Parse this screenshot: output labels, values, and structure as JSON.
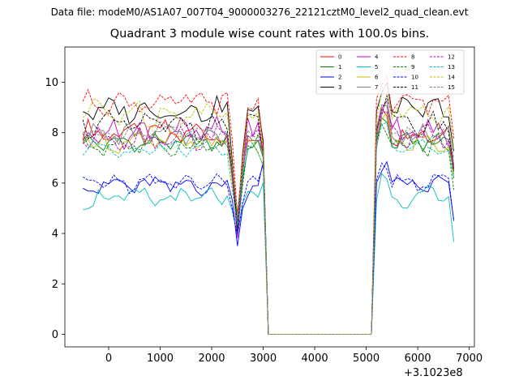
{
  "suptitle": "Data file: modeM0/AS1A07_007T04_9000003276_22121cztM0_level2_quad_clean.evt",
  "chart_data": {
    "type": "line",
    "title": "Quadrant 3 module wise count rates with 100.0s bins.",
    "xlabel": "",
    "ylabel": "",
    "x_offset_label": "+3.1023e8",
    "xlim": [
      -850,
      7100
    ],
    "ylim": [
      -0.5,
      11.4
    ],
    "xticks": [
      0,
      1000,
      2000,
      3000,
      4000,
      5000,
      6000,
      7000
    ],
    "yticks": [
      0,
      2,
      4,
      6,
      8,
      10
    ],
    "legend_position": "upper-right",
    "gap": {
      "start": 3100,
      "end": 5200
    },
    "x": {
      "start": -500,
      "end": 6700,
      "step": 100
    },
    "series": [
      {
        "name": "0",
        "color": "#ff0000",
        "dash": "solid",
        "base": 8.0,
        "amp": 0.4,
        "phase": 0.3
      },
      {
        "name": "1",
        "color": "#008000",
        "dash": "solid",
        "base": 7.6,
        "amp": 0.3,
        "phase": 1.1
      },
      {
        "name": "2",
        "color": "#0000ff",
        "dash": "solid",
        "base": 5.9,
        "amp": 0.35,
        "phase": 2.0
      },
      {
        "name": "3",
        "color": "#000000",
        "dash": "solid",
        "base": 8.9,
        "amp": 0.4,
        "phase": 2.7
      },
      {
        "name": "4",
        "color": "#c000c0",
        "dash": "solid",
        "base": 8.0,
        "amp": 0.45,
        "phase": 3.5
      },
      {
        "name": "5",
        "color": "#00bfbf",
        "dash": "solid",
        "base": 5.4,
        "amp": 0.35,
        "phase": 4.2
      },
      {
        "name": "6",
        "color": "#bfbf00",
        "dash": "solid",
        "base": 7.6,
        "amp": 0.35,
        "phase": 5.0
      },
      {
        "name": "7",
        "color": "#808080",
        "dash": "solid",
        "base": 7.9,
        "amp": 0.35,
        "phase": 5.8
      },
      {
        "name": "8",
        "color": "#ff0000",
        "dash": "dashed",
        "base": 9.2,
        "amp": 0.35,
        "phase": 0.8
      },
      {
        "name": "9",
        "color": "#008000",
        "dash": "dashed",
        "base": 7.5,
        "amp": 0.35,
        "phase": 1.6
      },
      {
        "name": "10",
        "color": "#0000ff",
        "dash": "dashed",
        "base": 6.0,
        "amp": 0.3,
        "phase": 2.4
      },
      {
        "name": "11",
        "color": "#000000",
        "dash": "dashed",
        "base": 8.3,
        "amp": 0.4,
        "phase": 3.1
      },
      {
        "name": "12",
        "color": "#c000c0",
        "dash": "dashed",
        "base": 7.8,
        "amp": 0.4,
        "phase": 3.9
      },
      {
        "name": "13",
        "color": "#00bfbf",
        "dash": "dashed",
        "base": 7.4,
        "amp": 0.3,
        "phase": 4.6
      },
      {
        "name": "14",
        "color": "#bfbf00",
        "dash": "dashed",
        "base": 8.8,
        "amp": 0.45,
        "phase": 5.4
      },
      {
        "name": "15",
        "color": "#808080",
        "dash": "dashed",
        "base": 8.0,
        "amp": 0.35,
        "phase": 6.1
      }
    ]
  }
}
